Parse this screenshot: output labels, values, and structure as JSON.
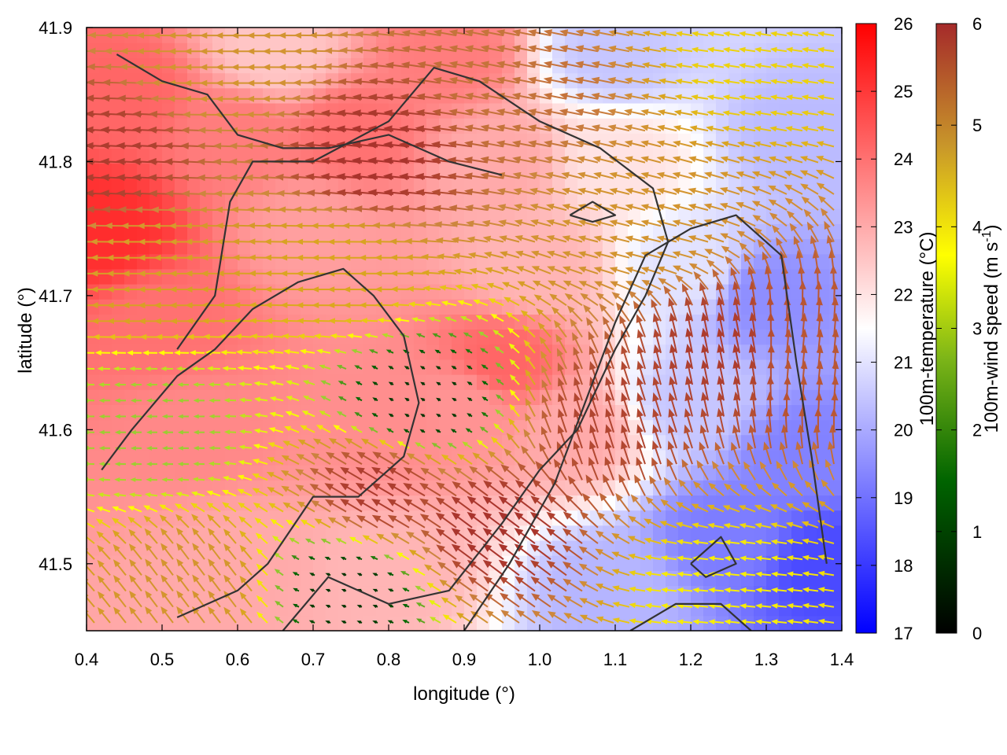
{
  "chart_data": {
    "type": "heatmap",
    "title": "",
    "xlabel": "longitude (°)",
    "ylabel": "latitude (°)",
    "xlim": [
      0.4,
      1.4
    ],
    "ylim": [
      41.45,
      41.9
    ],
    "xticks": [
      0.4,
      0.5,
      0.6,
      0.7,
      0.8,
      0.9,
      1.0,
      1.1,
      1.2,
      1.3,
      1.4
    ],
    "xtick_labels": [
      "0.4",
      "0.5",
      "0.6",
      "0.7",
      "0.8",
      "0.9",
      "1.0",
      "1.1",
      "1.2",
      "1.3",
      "1.4"
    ],
    "yticks": [
      41.5,
      41.6,
      41.7,
      41.8,
      41.9
    ],
    "ytick_labels": [
      "41.5",
      "41.6",
      "41.7",
      "41.8",
      "41.9"
    ],
    "grid": false,
    "layers": {
      "temperature_field": "100m-temperature",
      "wind_vectors": "100m-wind speed",
      "contours": "terrain contour lines"
    },
    "temperature_colorbar": {
      "label": "100m-temperature (°C)",
      "range": [
        17,
        26
      ],
      "ticks": [
        17,
        18,
        19,
        20,
        21,
        22,
        23,
        24,
        25,
        26
      ],
      "tick_labels": [
        "17",
        "18",
        "19",
        "20",
        "21",
        "22",
        "23",
        "24",
        "25",
        "26"
      ],
      "colors": [
        "#0000ff",
        "#ffffff",
        "#ff0000"
      ]
    },
    "wind_colorbar": {
      "label": "100m-wind speed (m s-1)",
      "label_parts": [
        "100m-wind speed (m s",
        "-1",
        ")"
      ],
      "range": [
        0,
        6
      ],
      "ticks": [
        0,
        1,
        2,
        3,
        4,
        5,
        6
      ],
      "tick_labels": [
        "0",
        "1",
        "2",
        "3",
        "4",
        "5",
        "6"
      ],
      "colors": [
        "#000000",
        "#006400",
        "#9acd32",
        "#ffff00",
        "#daa520",
        "#cd853f",
        "#a52a2a"
      ]
    },
    "temperature_samples": [
      {
        "lon": 0.42,
        "lat": 41.75,
        "t": 25.2
      },
      {
        "lon": 0.45,
        "lat": 41.85,
        "t": 24.2
      },
      {
        "lon": 0.5,
        "lat": 41.68,
        "t": 24.0
      },
      {
        "lon": 0.55,
        "lat": 41.6,
        "t": 23.6
      },
      {
        "lon": 0.6,
        "lat": 41.82,
        "t": 23.8
      },
      {
        "lon": 0.65,
        "lat": 41.88,
        "t": 22.5
      },
      {
        "lon": 0.7,
        "lat": 41.75,
        "t": 23.2
      },
      {
        "lon": 0.75,
        "lat": 41.82,
        "t": 24.0
      },
      {
        "lon": 0.8,
        "lat": 41.6,
        "t": 23.5
      },
      {
        "lon": 0.88,
        "lat": 41.88,
        "t": 23.8
      },
      {
        "lon": 0.9,
        "lat": 41.62,
        "t": 23.4
      },
      {
        "lon": 0.95,
        "lat": 41.65,
        "t": 24.2
      },
      {
        "lon": 0.95,
        "lat": 41.8,
        "t": 23.0
      },
      {
        "lon": 1.0,
        "lat": 41.72,
        "t": 22.8
      },
      {
        "lon": 1.05,
        "lat": 41.6,
        "t": 23.0
      },
      {
        "lon": 1.1,
        "lat": 41.8,
        "t": 22.0
      },
      {
        "lon": 1.1,
        "lat": 41.88,
        "t": 20.5
      },
      {
        "lon": 1.2,
        "lat": 41.72,
        "t": 21.0
      },
      {
        "lon": 1.2,
        "lat": 41.62,
        "t": 20.5
      },
      {
        "lon": 1.25,
        "lat": 41.52,
        "t": 19.2
      },
      {
        "lon": 1.3,
        "lat": 41.7,
        "t": 19.5
      },
      {
        "lon": 1.35,
        "lat": 41.82,
        "t": 20.3
      },
      {
        "lon": 1.35,
        "lat": 41.58,
        "t": 19.3
      },
      {
        "lon": 1.1,
        "lat": 41.48,
        "t": 20.2
      },
      {
        "lon": 0.6,
        "lat": 41.5,
        "t": 23.0
      },
      {
        "lon": 0.8,
        "lat": 41.5,
        "t": 22.8
      },
      {
        "lon": 1.38,
        "lat": 41.5,
        "t": 18.3
      }
    ],
    "wind_samples": [
      {
        "lon": 0.45,
        "lat": 41.8,
        "speed": 5.8,
        "u": -1,
        "v": 0.05
      },
      {
        "lon": 0.8,
        "lat": 41.8,
        "speed": 5.9,
        "u": -1,
        "v": 0.1
      },
      {
        "lon": 1.0,
        "lat": 41.85,
        "speed": 5.2,
        "u": -1,
        "v": 0.2
      },
      {
        "lon": 1.3,
        "lat": 41.88,
        "speed": 3.5,
        "u": -1,
        "v": 0.15
      },
      {
        "lon": 0.5,
        "lat": 41.72,
        "speed": 4.2,
        "u": -1,
        "v": 0.0
      },
      {
        "lon": 0.75,
        "lat": 41.72,
        "speed": 4.0,
        "u": -1,
        "v": 0.0
      },
      {
        "lon": 1.15,
        "lat": 41.75,
        "speed": 4.5,
        "u": -1,
        "v": 0.25
      },
      {
        "lon": 0.5,
        "lat": 41.6,
        "speed": 2.0,
        "u": -1,
        "v": 0.0
      },
      {
        "lon": 0.85,
        "lat": 41.62,
        "speed": 0.5,
        "u": -0.5,
        "v": 0.3
      },
      {
        "lon": 0.8,
        "lat": 41.55,
        "speed": 5.8,
        "u": -0.85,
        "v": 0.5
      },
      {
        "lon": 0.95,
        "lat": 41.52,
        "speed": 5.9,
        "u": -0.8,
        "v": 0.6
      },
      {
        "lon": 1.1,
        "lat": 41.6,
        "speed": 5.7,
        "u": -0.3,
        "v": 0.95
      },
      {
        "lon": 1.25,
        "lat": 41.65,
        "speed": 5.8,
        "u": -0.2,
        "v": 0.98
      },
      {
        "lon": 1.35,
        "lat": 41.65,
        "speed": 5.5,
        "u": 0.1,
        "v": 1.0
      },
      {
        "lon": 1.25,
        "lat": 41.48,
        "speed": 3.2,
        "u": -1,
        "v": 0.1
      },
      {
        "lon": 0.55,
        "lat": 41.48,
        "speed": 4.5,
        "u": -0.6,
        "v": 0.8
      },
      {
        "lon": 0.75,
        "lat": 41.48,
        "speed": 0.5,
        "u": -0.5,
        "v": 0.2
      },
      {
        "lon": 0.6,
        "lat": 41.88,
        "speed": 4.5,
        "u": -1,
        "v": 0.0
      }
    ],
    "contour_lines": [
      [
        [
          0.44,
          41.88
        ],
        [
          0.5,
          41.86
        ],
        [
          0.56,
          41.85
        ],
        [
          0.6,
          41.82
        ],
        [
          0.66,
          41.81
        ],
        [
          0.72,
          41.81
        ],
        [
          0.8,
          41.82
        ],
        [
          0.88,
          41.8
        ],
        [
          0.95,
          41.79
        ]
      ],
      [
        [
          0.52,
          41.66
        ],
        [
          0.57,
          41.7
        ],
        [
          0.59,
          41.77
        ],
        [
          0.62,
          41.8
        ],
        [
          0.7,
          41.8
        ],
        [
          0.8,
          41.83
        ],
        [
          0.86,
          41.87
        ],
        [
          0.92,
          41.86
        ],
        [
          1.0,
          41.83
        ],
        [
          1.08,
          41.81
        ],
        [
          1.15,
          41.78
        ],
        [
          1.17,
          41.74
        ],
        [
          1.14,
          41.7
        ],
        [
          1.1,
          41.66
        ],
        [
          1.05,
          41.6
        ],
        [
          1.0,
          41.57
        ],
        [
          0.95,
          41.53
        ],
        [
          0.88,
          41.48
        ],
        [
          0.8,
          41.47
        ],
        [
          0.72,
          41.49
        ],
        [
          0.66,
          41.45
        ]
      ],
      [
        [
          0.42,
          41.57
        ],
        [
          0.46,
          41.6
        ],
        [
          0.52,
          41.64
        ],
        [
          0.57,
          41.66
        ],
        [
          0.62,
          41.69
        ],
        [
          0.68,
          41.71
        ],
        [
          0.74,
          41.72
        ],
        [
          0.78,
          41.7
        ],
        [
          0.82,
          41.67
        ],
        [
          0.84,
          41.62
        ],
        [
          0.82,
          41.58
        ],
        [
          0.76,
          41.55
        ],
        [
          0.7,
          41.55
        ],
        [
          0.64,
          41.5
        ],
        [
          0.6,
          41.48
        ],
        [
          0.52,
          41.46
        ]
      ],
      [
        [
          0.9,
          41.45
        ],
        [
          0.96,
          41.5
        ],
        [
          1.02,
          41.56
        ],
        [
          1.06,
          41.62
        ],
        [
          1.1,
          41.68
        ],
        [
          1.14,
          41.73
        ],
        [
          1.2,
          41.75
        ],
        [
          1.26,
          41.76
        ],
        [
          1.32,
          41.73
        ],
        [
          1.34,
          41.65
        ],
        [
          1.36,
          41.58
        ],
        [
          1.38,
          41.5
        ]
      ],
      [
        [
          1.12,
          41.45
        ],
        [
          1.18,
          41.47
        ],
        [
          1.24,
          41.47
        ],
        [
          1.28,
          41.45
        ]
      ],
      [
        [
          1.04,
          41.76
        ],
        [
          1.07,
          41.77
        ],
        [
          1.1,
          41.76
        ],
        [
          1.07,
          41.755
        ],
        [
          1.04,
          41.76
        ]
      ],
      [
        [
          1.2,
          41.5
        ],
        [
          1.24,
          41.52
        ],
        [
          1.26,
          41.5
        ],
        [
          1.22,
          41.49
        ],
        [
          1.2,
          41.5
        ]
      ]
    ]
  }
}
